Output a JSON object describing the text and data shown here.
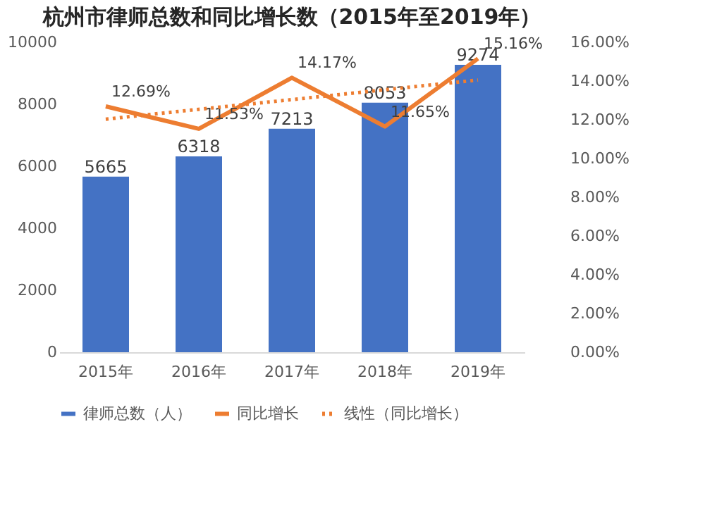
{
  "chart_data": {
    "type": "bar",
    "title": "杭州市律师总数和同比增长数（2015年至2019年）",
    "categories": [
      "2015年",
      "2016年",
      "2017年",
      "2018年",
      "2019年"
    ],
    "series": [
      {
        "name": "律师总数（人）",
        "type": "bar",
        "color": "#4472c4",
        "values": [
          5665,
          6318,
          7213,
          8053,
          9274
        ],
        "value_labels": [
          "5665",
          "6318",
          "7213",
          "8053",
          "9274"
        ]
      },
      {
        "name": "同比增长",
        "type": "line",
        "axis": "y2",
        "color": "#ed7d31",
        "line_style": "solid",
        "values": [
          12.69,
          11.53,
          14.17,
          11.65,
          15.16
        ],
        "value_labels": [
          "12.69%",
          "11.53%",
          "14.17%",
          "11.65%",
          "15.16%"
        ]
      },
      {
        "name": "线性（同比增长）",
        "type": "line",
        "axis": "y2",
        "color": "#ed7d31",
        "line_style": "dotted",
        "values": [
          12.03,
          12.54,
          13.04,
          13.55,
          14.05
        ]
      }
    ],
    "ylim": [
      0,
      10000
    ],
    "yticks": [
      0,
      2000,
      4000,
      6000,
      8000,
      10000
    ],
    "y2lim": [
      0,
      16
    ],
    "y2ticks": [
      {
        "value": 0,
        "label": "0.00%"
      },
      {
        "value": 2,
        "label": "2.00%"
      },
      {
        "value": 4,
        "label": "4.00%"
      },
      {
        "value": 6,
        "label": "6.00%"
      },
      {
        "value": 8,
        "label": "8.00%"
      },
      {
        "value": 10,
        "label": "10.00%"
      },
      {
        "value": 12,
        "label": "12.00%"
      },
      {
        "value": 14,
        "label": "14.00%"
      },
      {
        "value": 16,
        "label": "16.00%"
      }
    ],
    "grid": false,
    "legend": "bottom"
  }
}
